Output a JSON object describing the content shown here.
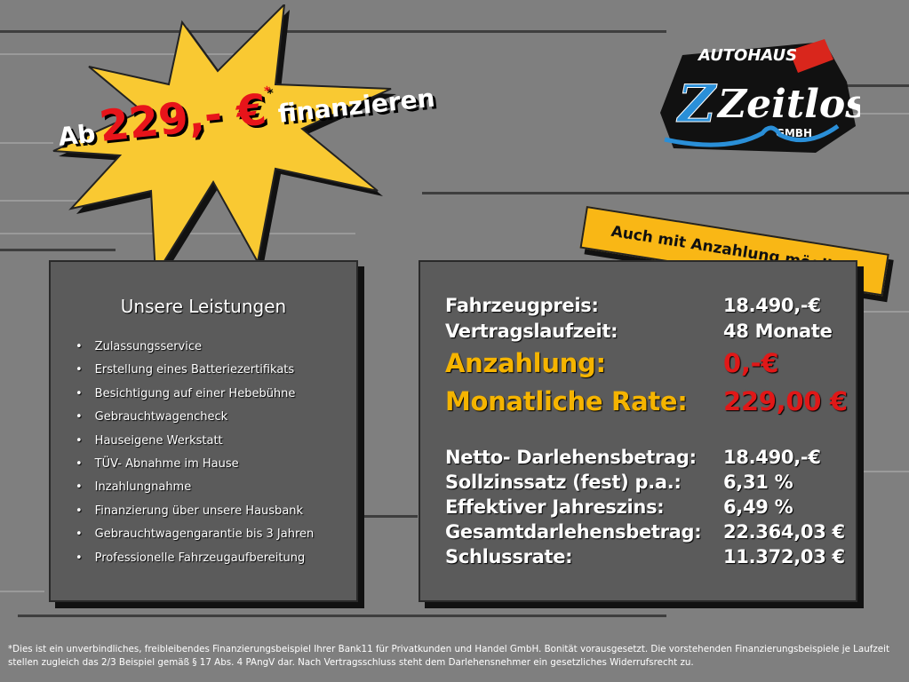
{
  "headline": {
    "prefix": "Ab",
    "price": "229,- €",
    "asterisk": "*",
    "suffix": "finanzieren"
  },
  "logo": {
    "line1": "AUTOHAUS",
    "line2": "Zeitlos",
    "line3": "GMBH",
    "colors": {
      "blue": "#2a8fd8",
      "red": "#d9261c",
      "black": "#111111"
    }
  },
  "banner": "Auch mit Anzahlung möglich!",
  "services": {
    "title": "Unsere Leistungen",
    "items": [
      "Zulassungsservice",
      "Erstellung eines Batteriezertifikats",
      "Besichtigung auf einer Hebebühne",
      "Gebrauchtwagencheck",
      "Hauseigene Werkstatt",
      "TÜV- Abnahme im Hause",
      "Inzahlungnahme",
      "Finanzierung über unsere Hausbank",
      "Gebrauchtwagengarantie bis 3 Jahren",
      "Professionelle Fahrzeugaufbereitung"
    ]
  },
  "financing": {
    "rows": [
      {
        "label": "Fahrzeugpreis:",
        "value": "18.490,-€"
      },
      {
        "label": "Vertragslaufzeit:",
        "value": "48 Monate"
      },
      {
        "label": "Anzahlung:",
        "value": "0,-€"
      },
      {
        "label": "Monatliche Rate:",
        "value": "229,00 €"
      },
      {
        "label": "Netto- Darlehensbetrag:",
        "value": "18.490,-€"
      },
      {
        "label": "Sollzinssatz (fest) p.a.:",
        "value": "6,31 %"
      },
      {
        "label": "Effektiver Jahreszins:",
        "value": "6,49 %"
      },
      {
        "label": "Gesamtdarlehensbetrag:",
        "value": "22.364,03 €"
      },
      {
        "label": "Schlussrate:",
        "value": "11.372,03 €"
      }
    ]
  },
  "footnote": "*Dies ist ein unverbindliches, freibleibendes Finanzierungsbeispiel Ihrer Bank11 für Privatkunden und Handel GmbH. Bonität vorausgesetzt. Die vorstehenden Finanzierungsbeispiele je Laufzeit stellen zugleich das 2/3 Beispiel gemäß § 17 Abs. 4 PAngV dar. Nach Vertragsschluss steht dem Darlehensnehmer ein gesetzliches Widerrufsrecht zu.",
  "colors": {
    "background": "#7f7f7f",
    "accent_orange": "#f5b400",
    "accent_red": "#e01818",
    "star": "#f9c932"
  }
}
